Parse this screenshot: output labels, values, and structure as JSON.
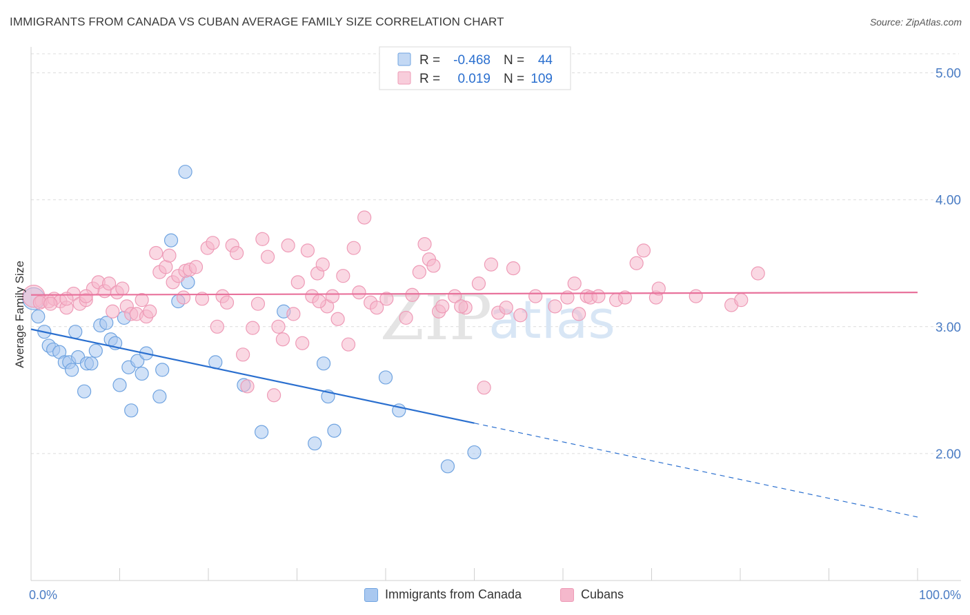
{
  "title": "IMMIGRANTS FROM CANADA VS CUBAN AVERAGE FAMILY SIZE CORRELATION CHART",
  "source": "Source: ZipAtlas.com",
  "watermark": {
    "zip": "ZIP",
    "atlas": "atlas"
  },
  "legend_top": [
    {
      "r_label": "R =",
      "r_value": "-0.468",
      "n_label": "N =",
      "n_value": "44",
      "color": "#a9c8f0"
    },
    {
      "r_label": "R =",
      "r_value": "0.019",
      "n_label": "N =",
      "n_value": "109",
      "color": "#f5b8cc"
    }
  ],
  "chart_data": {
    "type": "scatter",
    "title": "IMMIGRANTS FROM CANADA VS CUBAN AVERAGE FAMILY SIZE CORRELATION CHART",
    "xlabel": "",
    "ylabel": "Average Family Size",
    "xlim": [
      0,
      100
    ],
    "ylim": [
      1.0,
      5.15
    ],
    "x_tick_labels": [
      "0.0%",
      "100.0%"
    ],
    "y_ticks": [
      2.0,
      3.0,
      4.0,
      5.0
    ],
    "y_tick_labels": [
      "2.00",
      "3.00",
      "4.00",
      "5.00"
    ],
    "grid": true,
    "legend": "top-center",
    "series": [
      {
        "name": "Immigrants from Canada",
        "color": "#6fa3e0",
        "fill": "#a9c8f0",
        "line_color": "#2a6fcf",
        "trend": {
          "x0": 0,
          "y0": 2.98,
          "x1": 50,
          "y1": 2.24,
          "dashed_to": 100,
          "dashed_y": 1.5
        },
        "points": [
          [
            0.3,
            3.22
          ],
          [
            0.8,
            3.08
          ],
          [
            1.5,
            2.96
          ],
          [
            2.0,
            2.85
          ],
          [
            2.5,
            2.82
          ],
          [
            3.2,
            2.8
          ],
          [
            3.8,
            2.72
          ],
          [
            4.3,
            2.72
          ],
          [
            4.6,
            2.66
          ],
          [
            5.0,
            2.96
          ],
          [
            5.3,
            2.76
          ],
          [
            6.0,
            2.49
          ],
          [
            6.3,
            2.71
          ],
          [
            6.8,
            2.71
          ],
          [
            7.3,
            2.81
          ],
          [
            7.8,
            3.01
          ],
          [
            8.5,
            3.03
          ],
          [
            9.0,
            2.9
          ],
          [
            9.5,
            2.87
          ],
          [
            10.0,
            2.54
          ],
          [
            10.5,
            3.07
          ],
          [
            11.0,
            2.68
          ],
          [
            11.3,
            2.34
          ],
          [
            12.0,
            2.73
          ],
          [
            12.5,
            2.63
          ],
          [
            13.0,
            2.79
          ],
          [
            14.5,
            2.45
          ],
          [
            14.8,
            2.66
          ],
          [
            15.8,
            3.68
          ],
          [
            16.6,
            3.2
          ],
          [
            17.4,
            4.22
          ],
          [
            17.7,
            3.35
          ],
          [
            20.8,
            2.72
          ],
          [
            24.0,
            2.54
          ],
          [
            26.0,
            2.17
          ],
          [
            28.5,
            3.12
          ],
          [
            32.0,
            2.08
          ],
          [
            33.0,
            2.71
          ],
          [
            33.5,
            2.45
          ],
          [
            34.2,
            2.18
          ],
          [
            40.0,
            2.6
          ],
          [
            41.5,
            2.34
          ],
          [
            47.0,
            1.9
          ],
          [
            50.0,
            2.01
          ]
        ]
      },
      {
        "name": "Cubans",
        "color": "#ee9ab6",
        "fill": "#f5b8cc",
        "line_color": "#e8719b",
        "trend": {
          "x0": 0,
          "y0": 3.25,
          "x1": 100,
          "y1": 3.27
        },
        "points": [
          [
            0.3,
            3.24
          ],
          [
            1.2,
            3.2
          ],
          [
            2.0,
            3.2
          ],
          [
            2.6,
            3.22
          ],
          [
            3.3,
            3.2
          ],
          [
            4.0,
            3.15
          ],
          [
            4.8,
            3.26
          ],
          [
            5.5,
            3.18
          ],
          [
            6.2,
            3.21
          ],
          [
            7.0,
            3.3
          ],
          [
            7.6,
            3.35
          ],
          [
            8.3,
            3.28
          ],
          [
            8.8,
            3.34
          ],
          [
            9.2,
            3.12
          ],
          [
            9.7,
            3.27
          ],
          [
            10.3,
            3.3
          ],
          [
            10.8,
            3.16
          ],
          [
            11.3,
            3.1
          ],
          [
            11.9,
            3.1
          ],
          [
            12.5,
            3.21
          ],
          [
            13.0,
            3.08
          ],
          [
            13.4,
            3.12
          ],
          [
            14.1,
            3.58
          ],
          [
            14.5,
            3.43
          ],
          [
            15.2,
            3.47
          ],
          [
            15.6,
            3.56
          ],
          [
            16.0,
            3.35
          ],
          [
            16.6,
            3.4
          ],
          [
            17.4,
            3.44
          ],
          [
            17.9,
            3.45
          ],
          [
            18.6,
            3.47
          ],
          [
            19.3,
            3.22
          ],
          [
            19.9,
            3.62
          ],
          [
            20.5,
            3.66
          ],
          [
            21.0,
            3.0
          ],
          [
            21.6,
            3.24
          ],
          [
            22.1,
            3.19
          ],
          [
            22.7,
            3.64
          ],
          [
            23.2,
            3.58
          ],
          [
            23.9,
            2.78
          ],
          [
            24.4,
            2.53
          ],
          [
            25.0,
            2.99
          ],
          [
            25.6,
            3.18
          ],
          [
            26.1,
            3.69
          ],
          [
            26.7,
            3.55
          ],
          [
            27.4,
            2.46
          ],
          [
            27.9,
            3.0
          ],
          [
            28.4,
            2.9
          ],
          [
            29.0,
            3.64
          ],
          [
            29.6,
            3.1
          ],
          [
            30.1,
            3.35
          ],
          [
            30.6,
            2.87
          ],
          [
            31.2,
            3.6
          ],
          [
            31.7,
            3.24
          ],
          [
            32.3,
            3.42
          ],
          [
            32.9,
            3.49
          ],
          [
            33.4,
            3.16
          ],
          [
            34.0,
            3.24
          ],
          [
            34.6,
            3.06
          ],
          [
            35.2,
            3.4
          ],
          [
            35.8,
            2.86
          ],
          [
            36.4,
            3.62
          ],
          [
            37.0,
            3.27
          ],
          [
            37.6,
            3.86
          ],
          [
            38.3,
            3.19
          ],
          [
            39.0,
            3.15
          ],
          [
            40.1,
            3.22
          ],
          [
            42.3,
            3.07
          ],
          [
            43.0,
            3.25
          ],
          [
            43.8,
            3.43
          ],
          [
            44.4,
            3.65
          ],
          [
            44.9,
            3.53
          ],
          [
            45.4,
            3.48
          ],
          [
            46.0,
            3.12
          ],
          [
            46.4,
            3.16
          ],
          [
            47.8,
            3.24
          ],
          [
            49.0,
            3.15
          ],
          [
            50.5,
            3.34
          ],
          [
            51.1,
            2.52
          ],
          [
            51.9,
            3.49
          ],
          [
            52.7,
            3.11
          ],
          [
            53.6,
            3.15
          ],
          [
            54.4,
            3.46
          ],
          [
            55.2,
            3.09
          ],
          [
            56.9,
            3.24
          ],
          [
            59.1,
            3.16
          ],
          [
            60.5,
            3.23
          ],
          [
            61.3,
            3.34
          ],
          [
            61.8,
            3.1
          ],
          [
            62.7,
            3.24
          ],
          [
            63.1,
            3.23
          ],
          [
            64.0,
            3.24
          ],
          [
            66.0,
            3.21
          ],
          [
            67.0,
            3.23
          ],
          [
            68.3,
            3.5
          ],
          [
            69.1,
            3.6
          ],
          [
            70.5,
            3.23
          ],
          [
            70.8,
            3.3
          ],
          [
            75.0,
            3.24
          ],
          [
            79.0,
            3.17
          ],
          [
            80.1,
            3.21
          ],
          [
            82.0,
            3.42
          ],
          [
            1.0,
            3.19
          ],
          [
            2.2,
            3.18
          ],
          [
            4.0,
            3.22
          ],
          [
            6.2,
            3.24
          ],
          [
            17.2,
            3.23
          ],
          [
            32.5,
            3.2
          ],
          [
            48.5,
            3.16
          ]
        ]
      }
    ]
  }
}
